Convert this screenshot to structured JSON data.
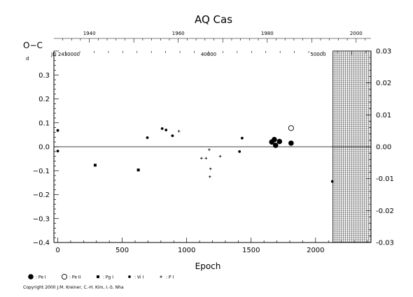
{
  "chart_data": {
    "type": "scatter",
    "title": "AQ Cas",
    "ylabel": "O−C",
    "ylabel_unit": "d",
    "xlabel": "Epoch",
    "xlim": [
      -30,
      2430
    ],
    "ylim": [
      -0.4,
      0.4
    ],
    "right_ylim": [
      -0.03,
      0.03
    ],
    "grid": false,
    "hatched_region": {
      "x_from": 2135,
      "x_to": 2430
    },
    "bottom_x_ticks": [
      0,
      500,
      1000,
      1500,
      2000
    ],
    "bottom_x_tick_labels": [
      "0",
      "500",
      "1000",
      "1500",
      "2000"
    ],
    "left_y_ticks": [
      0.3,
      0.2,
      0.1,
      0.0,
      -0.1,
      -0.2,
      -0.3,
      -0.4
    ],
    "left_y_tick_labels": [
      "0.3",
      "0.2",
      "0.1",
      "0.0",
      "−0.1",
      "−0.2",
      "−0.3",
      "−0.4"
    ],
    "right_y_ticks": [
      0.03,
      0.02,
      0.01,
      0.0,
      -0.01,
      -0.02,
      -0.03
    ],
    "right_y_tick_labels": [
      "0.03",
      "0.02",
      "0.01",
      "0.00",
      "-0.01",
      "-0.02",
      "-0.03"
    ],
    "top_year_axis": {
      "labels": [
        {
          "text": "1940",
          "epoch": 245
        },
        {
          "text": "1960",
          "epoch": 935
        },
        {
          "text": "1980",
          "epoch": 1625
        },
        {
          "text": "2000",
          "epoch": 2315
        }
      ]
    },
    "top_jd_axis": {
      "labels": [
        {
          "text": "JD 2430000",
          "epoch": 60
        },
        {
          "text": "40000",
          "epoch": 1170
        },
        {
          "text": "50000",
          "epoch": 2020
        }
      ]
    },
    "series": [
      {
        "name": "Pe I",
        "marker": "filled-circle-large",
        "points": [
          {
            "x": 1660,
            "y": 0.02
          },
          {
            "x": 1680,
            "y": 0.03
          },
          {
            "x": 1690,
            "y": 0.006
          },
          {
            "x": 1720,
            "y": 0.022
          },
          {
            "x": 1810,
            "y": 0.015
          }
        ]
      },
      {
        "name": "Pe II",
        "marker": "open-circle",
        "points": [
          {
            "x": 1810,
            "y": 0.078
          }
        ]
      },
      {
        "name": "Pg I",
        "marker": "filled-square",
        "points": [
          {
            "x": 290,
            "y": -0.077
          },
          {
            "x": 625,
            "y": -0.097
          }
        ]
      },
      {
        "name": "Vi I",
        "marker": "filled-circle-small",
        "points": [
          {
            "x": 0,
            "y": 0.068
          },
          {
            "x": 0,
            "y": -0.018
          },
          {
            "x": 695,
            "y": 0.038
          },
          {
            "x": 810,
            "y": 0.076
          },
          {
            "x": 840,
            "y": 0.07
          },
          {
            "x": 890,
            "y": 0.046
          },
          {
            "x": 1410,
            "y": -0.02
          },
          {
            "x": 1430,
            "y": 0.036
          },
          {
            "x": 2130,
            "y": -0.145
          }
        ]
      },
      {
        "name": "P I",
        "marker": "plus",
        "points": [
          {
            "x": 940,
            "y": 0.065
          },
          {
            "x": 1115,
            "y": -0.048
          },
          {
            "x": 1150,
            "y": -0.048
          },
          {
            "x": 1175,
            "y": -0.012
          },
          {
            "x": 1185,
            "y": -0.092
          },
          {
            "x": 1180,
            "y": -0.125
          },
          {
            "x": 1260,
            "y": -0.04
          }
        ]
      }
    ],
    "legend": {
      "placement": "bottom-left",
      "entries": [
        {
          "marker": "filled-circle-large",
          "label": ": Pe I"
        },
        {
          "marker": "open-circle",
          "label": ": Pe II"
        },
        {
          "marker": "filled-square",
          "label": ": Pg I"
        },
        {
          "marker": "filled-circle-small",
          "label": ": Vi I"
        },
        {
          "marker": "plus",
          "label": ": P I"
        }
      ]
    }
  },
  "copyright": "Copyright 2000 J.M. Kreiner, C.-H. Kim, I.-S. Nha"
}
